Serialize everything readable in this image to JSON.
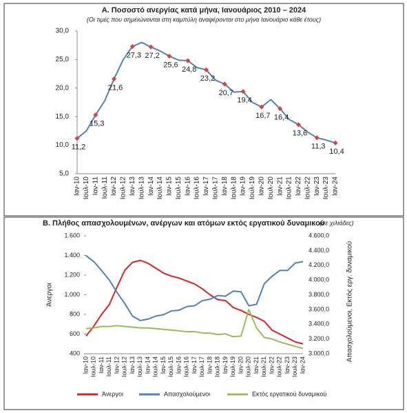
{
  "chart_data": [
    {
      "type": "line",
      "title": "Α. Ποσοστό ανεργίας κατά μήνα, Ιανουάριος 2010 – 2024",
      "subtitle": "(Οι τιμές που σημειώνονται στη καμπύλη αναφέρονται στο μήνα Ιανουάριο κάθε έτους)",
      "categories": [
        "Ιαν-10",
        "Ιουλ-10",
        "Ιαν-11",
        "Ιουλ-11",
        "Ιαν-12",
        "Ιουλ-12",
        "Ιαν-13",
        "Ιουλ-13",
        "Ιαν-14",
        "Ιουλ-14",
        "Ιαν-15",
        "Ιουλ-15",
        "Ιαν-16",
        "Ιουλ-16",
        "Ιαν-17",
        "Ιουλ-17",
        "Ιαν-18",
        "Ιουλ-18",
        "Ιαν-19",
        "Ιουλ-19",
        "Ιαν-20",
        "Ιουλ-20",
        "Ιαν-21",
        "Ιουλ-21",
        "Ιαν-22",
        "Ιουλ-22",
        "Ιαν-23",
        "Ιουλ-23",
        "Ιαν-24"
      ],
      "values": [
        11.2,
        12.5,
        15.3,
        17.8,
        21.6,
        25.0,
        27.3,
        28.0,
        27.2,
        26.5,
        25.6,
        24.9,
        24.8,
        23.6,
        23.2,
        21.4,
        20.7,
        19.3,
        19.4,
        17.5,
        16.7,
        18.0,
        16.4,
        14.5,
        13.6,
        12.3,
        11.3,
        10.9,
        10.4
      ],
      "value_labels": [
        "11,2",
        null,
        "15,3",
        null,
        "21,6",
        null,
        "27,3",
        null,
        "27,2",
        null,
        "25,6",
        null,
        "24,8",
        null,
        "23,2",
        null,
        "20,7",
        null,
        "19,4",
        null,
        "16,7",
        null,
        "16,4",
        null,
        "13,6",
        null,
        "11,3",
        null,
        "10,4"
      ],
      "color": "#4f81bd",
      "marker_color": "#e0403c",
      "ylim": [
        5,
        30
      ],
      "yticks": [
        {
          "value": 5,
          "label": "5,0"
        },
        {
          "value": 10,
          "label": "10,0"
        },
        {
          "value": 15,
          "label": "15,0"
        },
        {
          "value": 20,
          "label": "20,0"
        },
        {
          "value": 25,
          "label": "25,0"
        },
        {
          "value": 30,
          "label": "30,0"
        }
      ],
      "grid": false
    },
    {
      "type": "line",
      "title": "Β. Πλήθος απασχολουμένων, ανέργων και ατόμων εκτός εργατικού δυναμικού",
      "subtitle": "(σε χιλιάδες)",
      "y_label": "Άνεργοι",
      "y2_label": "Απασχολούμενοι, Εκτός εργ. δυναμικού",
      "categories": [
        "Ιαν-10",
        "Ιουλ-10",
        "Ιαν-11",
        "Ιουλ-11",
        "Ιαν-12",
        "Ιουλ-12",
        "Ιαν-13",
        "Ιουλ-13",
        "Ιαν-14",
        "Ιουλ-14",
        "Ιαν-15",
        "Ιουλ-15",
        "Ιαν-16",
        "Ιουλ-16",
        "Ιαν-17",
        "Ιουλ-17",
        "Ιαν-18",
        "Ιουλ-18",
        "Ιαν-19",
        "Ιουλ-19",
        "Ιαν-20",
        "Ιουλ-20",
        "Ιαν-21",
        "Ιουλ-21",
        "Ιαν-22",
        "Ιουλ-22",
        "Ιαν-23",
        "Ιουλ-23",
        "Ιαν-24"
      ],
      "series": [
        {
          "name": "Άνεργοι",
          "color": "#e02020",
          "values": [
            580,
            680,
            800,
            900,
            1080,
            1250,
            1330,
            1350,
            1320,
            1270,
            1220,
            1190,
            1170,
            1140,
            1110,
            1060,
            1000,
            950,
            940,
            870,
            840,
            800,
            770,
            730,
            640,
            600,
            560,
            520,
            500
          ]
        },
        {
          "name": "Απασχολούμενοι",
          "color": "#4f81bd",
          "axis": "y2",
          "values": [
            4330,
            4250,
            4130,
            4000,
            3830,
            3680,
            3510,
            3450,
            3470,
            3510,
            3530,
            3580,
            3590,
            3640,
            3650,
            3720,
            3740,
            3790,
            3780,
            3850,
            3840,
            3650,
            3670,
            3950,
            4050,
            4130,
            4130,
            4230,
            4250
          ]
        },
        {
          "name": "Εκτός εργατικού δυναμικού",
          "color": "#9bbb59",
          "axis": "y2",
          "values": [
            3340,
            3350,
            3370,
            3370,
            3380,
            3370,
            3360,
            3350,
            3350,
            3340,
            3330,
            3320,
            3310,
            3300,
            3300,
            3280,
            3280,
            3260,
            3270,
            3230,
            3240,
            3600,
            3350,
            3220,
            3200,
            3160,
            3130,
            3100,
            3070
          ]
        }
      ],
      "ylim": [
        400,
        1600
      ],
      "yticks": [
        400,
        600,
        800,
        {
          "value": 1000,
          "label": "1.000"
        },
        {
          "value": 1200,
          "label": "1.200"
        },
        {
          "value": 1400,
          "label": "1.400"
        },
        {
          "value": 1600,
          "label": "1.600"
        }
      ],
      "y2lim": [
        3000,
        4600
      ],
      "y2ticks": [
        {
          "value": 3000,
          "label": "3.000,0"
        },
        {
          "value": 3200,
          "label": "3.200,0"
        },
        {
          "value": 3400,
          "label": "3.400,0"
        },
        {
          "value": 3600,
          "label": "3.600,0"
        },
        {
          "value": 3800,
          "label": "3.800,0"
        },
        {
          "value": 4000,
          "label": "4.000,0"
        },
        {
          "value": 4200,
          "label": "4.200,0"
        },
        {
          "value": 4400,
          "label": "4.400,0"
        },
        {
          "value": 4600,
          "label": "4.600,0"
        }
      ],
      "legend": "bottom",
      "grid": false
    }
  ]
}
